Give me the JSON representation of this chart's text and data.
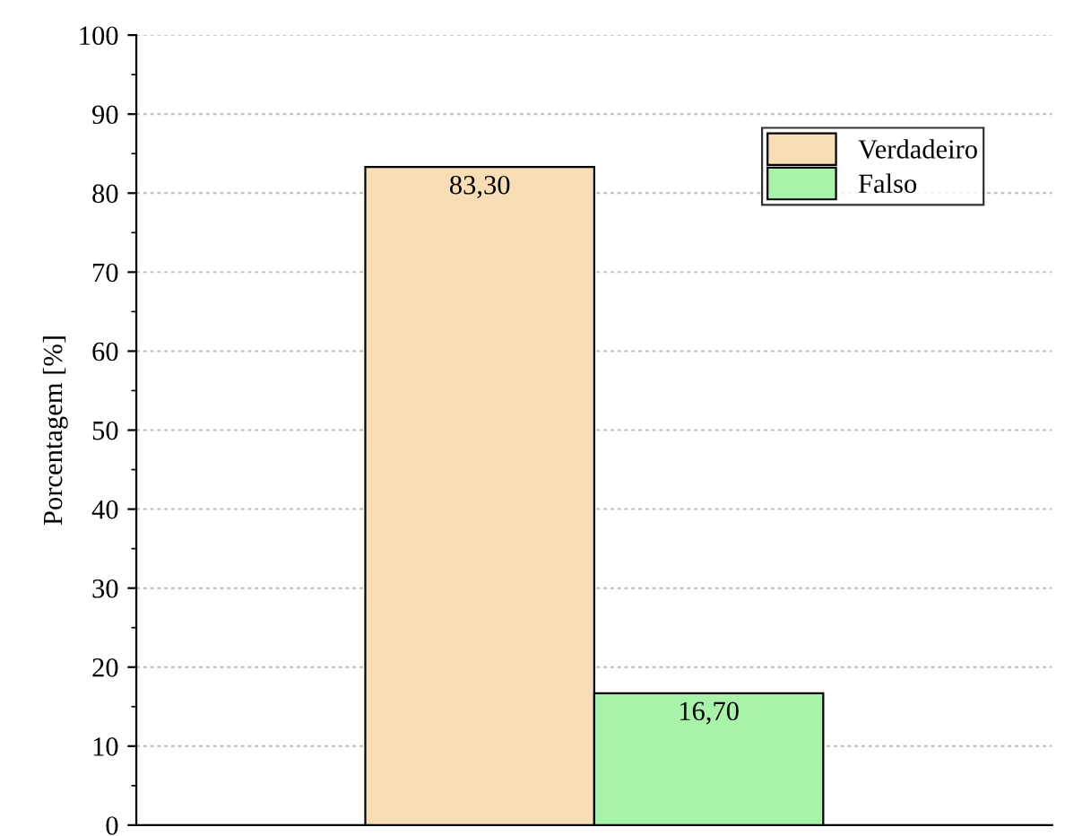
{
  "chart_data": {
    "type": "bar",
    "ylabel": "Porcentagem [%]",
    "categories": [
      null
    ],
    "series": [
      {
        "name": "Verdadeiro",
        "color": "#f7deb6",
        "values": [
          83.3
        ],
        "value_labels": [
          "83,30"
        ]
      },
      {
        "name": "Falso",
        "color": "#a9f2a9",
        "values": [
          16.7
        ],
        "value_labels": [
          "16,70"
        ]
      }
    ],
    "ylim": [
      0,
      100
    ],
    "yticks": [
      0,
      10,
      20,
      30,
      40,
      50,
      60,
      70,
      80,
      90,
      100
    ],
    "grid": "y",
    "legend": "top right"
  }
}
